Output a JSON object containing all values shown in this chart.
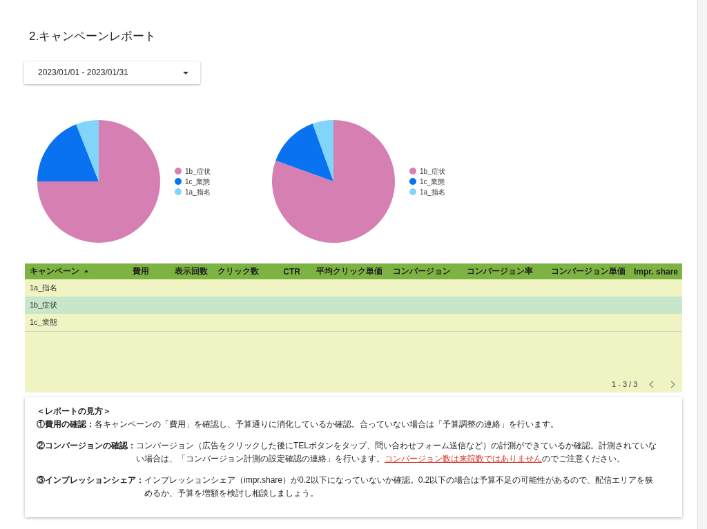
{
  "chart_data": [
    {
      "type": "other",
      "title": "2.キャンペーンレポート",
      "annotations": [
        "2023/01/01 - 2023/01/31"
      ]
    },
    {
      "type": "pie",
      "categories": [
        "1b_症状",
        "1c_業態",
        "1a_指名"
      ],
      "values": [
        75,
        19,
        6
      ],
      "colors": [
        "#d57fb3",
        "#0872f0",
        "#81d4fa"
      ],
      "legend": "right"
    },
    {
      "type": "pie",
      "categories": [
        "1b_症状",
        "1c_業態",
        "1a_指名"
      ],
      "values": [
        80.5,
        14,
        5.5
      ],
      "colors": [
        "#d57fb3",
        "#0872f0",
        "#81d4fa"
      ],
      "legend": "right"
    },
    {
      "type": "other",
      "categories": [
        "キャンペーン",
        "費用",
        "表示回数",
        "クリック数",
        "CTR",
        "平均クリック単価",
        "コンバージョン",
        "コンバージョン率",
        "コンバージョン単価",
        "Impr. share"
      ],
      "y_categories": [
        "1a_指名",
        "1b_症状",
        "1c_業態"
      ],
      "annotations": [
        "1 - 3 / 3"
      ]
    },
    {
      "type": "other",
      "annotations": [
        "＜レポートの見方＞",
        "①費用の確認：",
        "各キャンペーンの「費用」を確認し、予算通りに消化しているか確認。合っていない場合は「予算調整の連絡」を行います。",
        "②コンバージョンの確認：",
        "コンバージョン（広告をクリックした後にTELボタンをタップ、問い合わせフォーム送信など）の計測ができているか確認。計測されていない場合は、「コンバージョン計測の設定確認の連絡」を行います。",
        "コンバージョン数は来院数ではありません",
        "のでご注意ください。",
        "③インプレッションシェア：",
        "インプレッションシェア（impr.share）が0.2以下になっていないか確認。0.2以下の場合は予算不足の可能性があるので、配信エリアを狭めるか、予算を増額を検討し相談しましょう。"
      ]
    }
  ]
}
